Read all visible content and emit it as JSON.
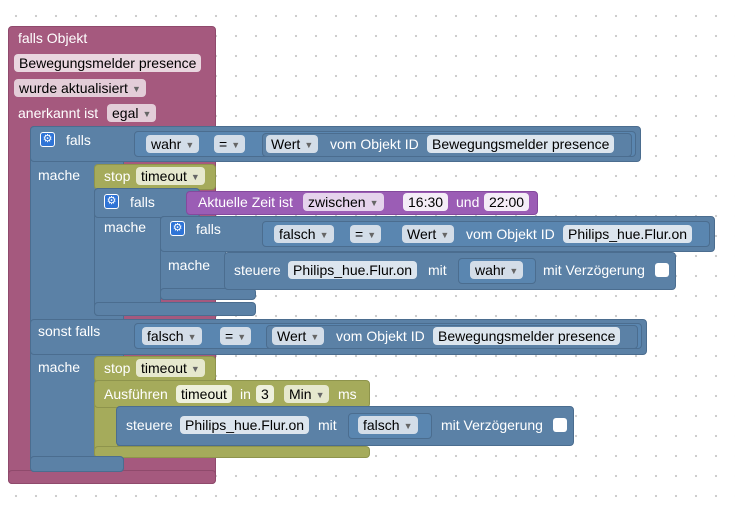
{
  "trigger": {
    "title": "falls Objekt",
    "object_id": "Bewegungsmelder presence",
    "event": "wurde aktualisiert",
    "ack_label": "anerkannt ist",
    "ack_value": "egal"
  },
  "if1": {
    "falls": "falls",
    "mache": "mache",
    "sonst_falls": "sonst falls",
    "mache2": "mache",
    "cond1": {
      "value": "wahr",
      "op": "=",
      "prop": "Wert",
      "of_label": "vom Objekt ID",
      "object": "Bewegungsmelder presence"
    },
    "cond2": {
      "value": "falsch",
      "op": "=",
      "prop": "Wert",
      "of_label": "vom Objekt ID",
      "object": "Bewegungsmelder presence"
    }
  },
  "stop1": {
    "label": "stop",
    "name": "timeout"
  },
  "if2": {
    "falls": "falls",
    "mache": "mache",
    "time_label": "Aktuelle Zeit ist",
    "time_mode": "zwischen",
    "time_from": "16:30",
    "and": "und",
    "time_to": "22:00"
  },
  "if3": {
    "falls": "falls",
    "mache": "mache",
    "value": "falsch",
    "op": "=",
    "prop": "Wert",
    "of_label": "vom Objekt ID",
    "object": "Philips_hue.Flur.on"
  },
  "control1": {
    "steuere": "steuere",
    "object": "Philips_hue.Flur.on",
    "mit": "mit",
    "value": "wahr",
    "delay": "mit Verzögerung"
  },
  "stop2": {
    "label": "stop",
    "name": "timeout"
  },
  "timeout": {
    "label": "Ausführen",
    "name": "timeout",
    "in": "in",
    "count": "3",
    "unit": "Min",
    "ms": "ms"
  },
  "control2": {
    "steuere": "steuere",
    "object": "Philips_hue.Flur.on",
    "mit": "mit",
    "value": "falsch",
    "delay": "mit Verzögerung"
  }
}
